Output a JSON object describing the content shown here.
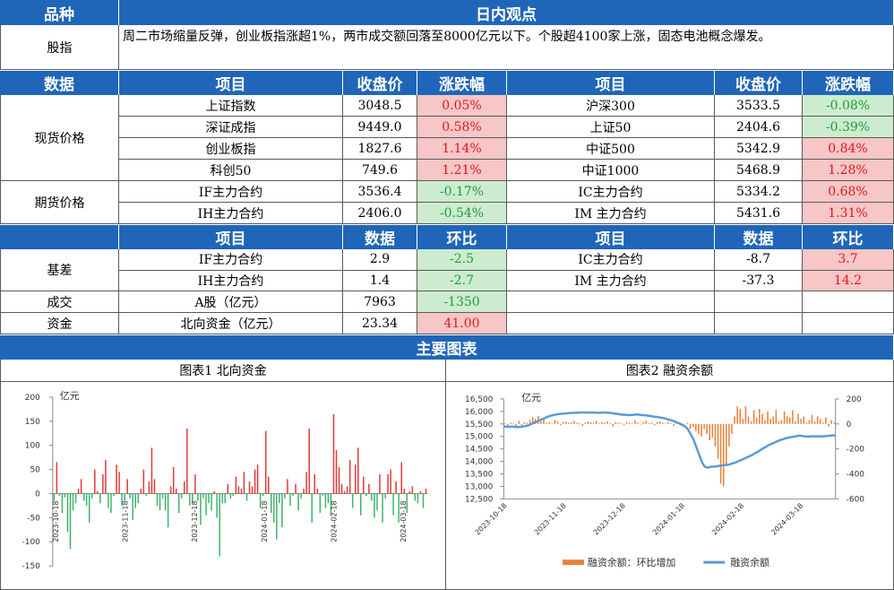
{
  "header": {
    "col1": "品种",
    "title": "日内观点"
  },
  "stock_index": {
    "label": "股指",
    "text": "周二市场缩量反弹，创业板指涨超1%，两市成交额回落至8000亿元以下。个股超4100家上涨，固态电池概念爆发。"
  },
  "price_header": {
    "c1": "数据",
    "c2": "项目",
    "c3": "收盘价",
    "c4": "涨跌幅",
    "c5": "项目",
    "c6": "收盘价",
    "c7": "涨跌幅"
  },
  "spot": {
    "label": "现货价格",
    "rows": [
      {
        "l_name": "上证指数",
        "l_val": "3048.5",
        "l_chg": "0.05%",
        "l_color": "red",
        "r_name": "沪深300",
        "r_val": "3533.5",
        "r_chg": "-0.08%",
        "r_color": "green"
      },
      {
        "l_name": "深证成指",
        "l_val": "9449.0",
        "l_chg": "0.58%",
        "l_color": "red",
        "r_name": "上证50",
        "r_val": "2404.6",
        "r_chg": "-0.39%",
        "r_color": "green"
      },
      {
        "l_name": "创业板指",
        "l_val": "1827.6",
        "l_chg": "1.14%",
        "l_color": "red",
        "r_name": "中证500",
        "r_val": "5342.9",
        "r_chg": "0.84%",
        "r_color": "red"
      },
      {
        "l_name": "科创50",
        "l_val": "749.6",
        "l_chg": "1.21%",
        "l_color": "red",
        "r_name": "中证1000",
        "r_val": "5468.9",
        "r_chg": "1.28%",
        "r_color": "red"
      }
    ]
  },
  "futures": {
    "label": "期货价格",
    "rows": [
      {
        "l_name": "IF主力合约",
        "l_val": "3536.4",
        "l_chg": "-0.17%",
        "l_color": "green",
        "r_name": "IC主力合约",
        "r_val": "5334.2",
        "r_chg": "0.68%",
        "r_color": "red"
      },
      {
        "l_name": "IH主力合约",
        "l_val": "2406.0",
        "l_chg": "-0.54%",
        "l_color": "green",
        "r_name": "IM 主力合约",
        "r_val": "5431.6",
        "r_chg": "1.31%",
        "r_color": "red"
      }
    ]
  },
  "basis_header": {
    "c2": "项目",
    "c3": "数据",
    "c4": "环比",
    "c5": "项目",
    "c6": "数据",
    "c7": "环比"
  },
  "basis": {
    "label": "基差",
    "rows": [
      {
        "l_name": "IF主力合约",
        "l_val": "2.9",
        "l_chg": "-2.5",
        "l_color": "green",
        "r_name": "IC主力合约",
        "r_val": "-8.7",
        "r_chg": "3.7",
        "r_color": "red"
      },
      {
        "l_name": "IH主力合约",
        "l_val": "1.4",
        "l_chg": "-2.7",
        "l_color": "green",
        "r_name": "IM 主力合约",
        "r_val": "-37.3",
        "r_chg": "14.2",
        "r_color": "red"
      }
    ]
  },
  "volume": {
    "label": "成交",
    "name": "A股（亿元）",
    "val": "7963",
    "chg": "-1350",
    "color": "green"
  },
  "capital": {
    "label": "资金",
    "name": "北向资金（亿元）",
    "val": "23.34",
    "chg": "41.00",
    "color": "red"
  },
  "charts_title": "主要图表",
  "chart_data": [
    {
      "type": "bar",
      "title": "图表1  北向资金",
      "ylabel": "亿元",
      "ylim": [
        -150,
        200
      ],
      "yticks": [
        200,
        150,
        100,
        50,
        0,
        -50,
        -100,
        -150
      ],
      "xticks": [
        "2023-10-18",
        "2023-11-18",
        "2023-12-18",
        "2024-01-18",
        "2024-02-18",
        "2024-03-18"
      ],
      "series": [
        {
          "values": [
            -15,
            65,
            -5,
            -40,
            -8,
            -80,
            -115,
            -35,
            -20,
            10,
            30,
            -15,
            -25,
            -60,
            -10,
            50,
            5,
            -20,
            40,
            70,
            -30,
            -40,
            -5,
            60,
            45,
            -25,
            -15,
            30,
            -10,
            -55,
            -30,
            -20,
            10,
            50,
            -5,
            25,
            95,
            30,
            -25,
            -35,
            -10,
            -35,
            -70,
            15,
            55,
            10,
            -40,
            -10,
            25,
            135,
            -25,
            -20,
            40,
            -15,
            -65,
            -10,
            -45,
            -20,
            -35,
            5,
            -50,
            -130,
            -20,
            -20,
            20,
            -10,
            -5,
            35,
            15,
            10,
            45,
            -15,
            25,
            15,
            50,
            60,
            -30,
            -5,
            130,
            35,
            -40,
            -60,
            -95,
            -20,
            -70,
            -10,
            30,
            -25,
            -5,
            20,
            -35,
            -10,
            10,
            45,
            135,
            -60,
            40,
            10,
            -40,
            -5,
            -30,
            -20,
            -45,
            165,
            90,
            55,
            20,
            5,
            15,
            70,
            -30,
            60,
            95,
            -45,
            35,
            -5,
            20,
            -15,
            -50,
            -35,
            40,
            -60,
            -10,
            40,
            50,
            -45,
            25,
            -60,
            65,
            10,
            -40,
            5,
            15,
            -15,
            -20,
            5,
            -30,
            10
          ]
        }
      ]
    },
    {
      "type": "bar+line",
      "title": "图表2  融资余额",
      "ylabel": "亿元",
      "ylim_left": [
        12500,
        16500
      ],
      "ylim_right": [
        -600,
        200
      ],
      "yticks_left": [
        "16,500",
        "16,000",
        "15,500",
        "15,000",
        "14,500",
        "14,000",
        "13,500",
        "13,000",
        "12,500"
      ],
      "yticks_right": [
        "200",
        "0",
        "-200",
        "-400",
        "-600"
      ],
      "xticks": [
        "2023-10-18",
        "2023-11-18",
        "2023-12-18",
        "2024-01-18",
        "2024-02-18",
        "2024-03-18"
      ],
      "series": [
        {
          "name": "融资余额：环比增加",
          "axis": "right",
          "color": "#e8823a",
          "values": [
            5,
            -15,
            10,
            5,
            -20,
            25,
            -10,
            15,
            10,
            30,
            55,
            40,
            65,
            20,
            35,
            10,
            15,
            5,
            30,
            20,
            -10,
            15,
            20,
            10,
            15,
            25,
            10,
            5,
            -15,
            10,
            20,
            15,
            10,
            25,
            5,
            15,
            10,
            20,
            5,
            -20,
            15,
            10,
            5,
            -10,
            15,
            10,
            5,
            30,
            10,
            -5,
            15,
            25,
            5,
            10,
            -10,
            15,
            20,
            10,
            5,
            15,
            5,
            -15,
            10,
            15,
            5,
            -5,
            10,
            -40,
            -25,
            -60,
            -80,
            -100,
            -40,
            -80,
            -130,
            -110,
            -180,
            -280,
            -480,
            -500,
            -330,
            -180,
            -80,
            60,
            140,
            120,
            40,
            140,
            60,
            20,
            110,
            50,
            120,
            80,
            30,
            100,
            40,
            60,
            110,
            20,
            30,
            100,
            60,
            50,
            110,
            20,
            80,
            40,
            60,
            10,
            30,
            70,
            20,
            60,
            40,
            10,
            50,
            -20,
            30,
            10
          ]
        },
        {
          "name": "融资余额",
          "axis": "left",
          "color": "#5b9bd5",
          "values": [
            15400,
            15390,
            15380,
            15400,
            15380,
            15370,
            15380,
            15400,
            15420,
            15450,
            15500,
            15550,
            15600,
            15650,
            15700,
            15750,
            15800,
            15830,
            15860,
            15880,
            15900,
            15910,
            15920,
            15930,
            15940,
            15940,
            15950,
            15950,
            15960,
            15960,
            15950,
            15960,
            15960,
            15950,
            15940,
            15950,
            15960,
            15950,
            15940,
            15930,
            15910,
            15900,
            15880,
            15870,
            15860,
            15850,
            15860,
            15870,
            15880,
            15860,
            15850,
            15840,
            15830,
            15810,
            15790,
            15780,
            15760,
            15740,
            15710,
            15680,
            15650,
            15610,
            15570,
            15520,
            15460,
            15400,
            15300,
            15100,
            14900,
            14600,
            14300,
            14000,
            13800,
            13750,
            13780,
            13790,
            13800,
            13820,
            13830,
            13850,
            13860,
            13880,
            13920,
            13950,
            14000,
            14050,
            14100,
            14150,
            14200,
            14250,
            14320,
            14380,
            14450,
            14520,
            14580,
            14650,
            14700,
            14750,
            14800,
            14850,
            14880,
            14920,
            14950,
            14970,
            14990,
            15010,
            15030,
            15020,
            15000,
            14990,
            15000,
            15010,
            15000,
            15010,
            15000,
            15010,
            15020,
            15030,
            15040,
            15050
          ]
        }
      ]
    }
  ]
}
